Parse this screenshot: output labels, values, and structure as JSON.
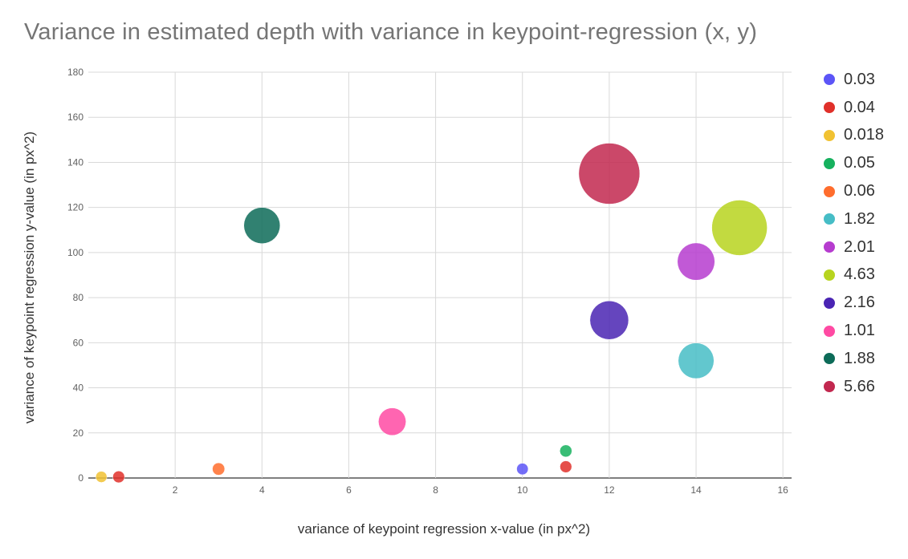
{
  "chart_data": {
    "type": "scatter",
    "title": "Variance in estimated depth with variance in keypoint-regression (x, y)",
    "xlabel": "variance of keypoint regression x-value (in px^2)",
    "ylabel": "variance of keypoint regression y-value (in px^2)",
    "xlim": [
      0,
      16.2
    ],
    "ylim": [
      0,
      180
    ],
    "xticks": [
      2,
      4,
      6,
      8,
      10,
      12,
      14,
      16
    ],
    "yticks": [
      0,
      20,
      40,
      60,
      80,
      100,
      120,
      140,
      160,
      180
    ],
    "size_encoding": "estimated depth variance",
    "series": [
      {
        "name": "0.03",
        "color": "#5c55f7",
        "x": 10,
        "y": 4,
        "size": 0.03
      },
      {
        "name": "0.04",
        "color": "#e0302a",
        "x": 11,
        "y": 5,
        "size": 0.04
      },
      {
        "name": "0.018",
        "color": "#f1c232",
        "x": 0.3,
        "y": 0.5,
        "size": 0.018
      },
      {
        "name": "0.05",
        "color": "#16b15e",
        "x": 11,
        "y": 12,
        "size": 0.05
      },
      {
        "name": "0.06",
        "color": "#ff6d2d",
        "x": 3,
        "y": 4,
        "size": 0.06
      },
      {
        "name": "1.82",
        "color": "#46bdc6",
        "x": 14,
        "y": 52,
        "size": 1.82
      },
      {
        "name": "2.01",
        "color": "#b63ccf",
        "x": 14,
        "y": 96,
        "size": 2.01
      },
      {
        "name": "4.63",
        "color": "#b7d41f",
        "x": 15,
        "y": 111,
        "size": 4.63
      },
      {
        "name": "2.16",
        "color": "#4a24b3",
        "x": 12,
        "y": 70,
        "size": 2.16
      },
      {
        "name": "1.01",
        "color": "#ff4aa3",
        "x": 7,
        "y": 25,
        "size": 1.01
      },
      {
        "name": "1.88",
        "color": "#0d6b58",
        "x": 4,
        "y": 112,
        "size": 1.88
      },
      {
        "name": "5.66",
        "color": "#c2284f",
        "x": 12,
        "y": 135,
        "size": 5.66
      }
    ],
    "overlap_points": [
      {
        "color": "#e0302a",
        "x": 0.7,
        "y": 0.5,
        "size": 0.04
      }
    ]
  }
}
